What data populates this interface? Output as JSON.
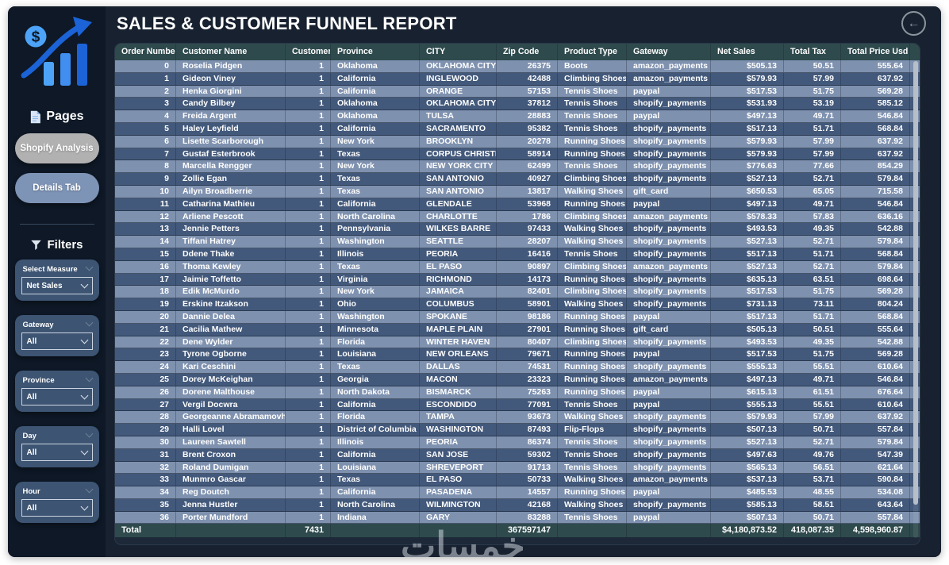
{
  "page": {
    "title": "SALES & CUSTOMER FUNNEL REPORT",
    "back_icon": "←",
    "watermark": "خمسات"
  },
  "sidebar": {
    "pages_title": "Pages",
    "pages": [
      {
        "label": "Shopify Analysis",
        "active": true
      },
      {
        "label": "Details Tab",
        "active": false
      }
    ],
    "filters_title": "Filters",
    "filters": [
      {
        "label": "Select Measure",
        "value": "Net Sales"
      },
      {
        "label": "Gateway",
        "value": "All"
      },
      {
        "label": "Province",
        "value": "All"
      },
      {
        "label": "Day",
        "value": "All"
      },
      {
        "label": "Hour",
        "value": "All"
      }
    ]
  },
  "colors": {
    "page_bg": "#ffffff",
    "dashboard_bg": "#17212f",
    "sidebar_bg": "#0e1826",
    "table_header_bg": "#2e4a4d",
    "row_light": "#7e91af",
    "row_dark": "#43597b",
    "active_page_btn": "#b2b1b2",
    "inactive_page_btn": "#7e94b6",
    "filter_card_bg": "#3d5472",
    "accent_blue_light": "#4da3f7",
    "accent_blue_dark": "#1b63d6"
  },
  "table": {
    "columns": [
      {
        "label": "Order Number",
        "align": "right"
      },
      {
        "label": "Customer Name",
        "align": "left"
      },
      {
        "label": "Customer Id",
        "align": "right"
      },
      {
        "label": "Province",
        "align": "left"
      },
      {
        "label": "CITY",
        "align": "left"
      },
      {
        "label": "Zip Code",
        "align": "right"
      },
      {
        "label": "Product Type",
        "align": "left"
      },
      {
        "label": "Gateway",
        "align": "left"
      },
      {
        "label": "Net Sales",
        "align": "right"
      },
      {
        "label": "Total Tax",
        "align": "right"
      },
      {
        "label": "Total Price Usd",
        "align": "right"
      }
    ],
    "rows": [
      [
        "0",
        "Roselia Pidgen",
        "1",
        "Oklahoma",
        "OKLAHOMA CITY",
        "26375",
        "Boots",
        "amazon_payments",
        "$505.13",
        "50.51",
        "555.64"
      ],
      [
        "1",
        "Gideon Viney",
        "1",
        "California",
        "INGLEWOOD",
        "42488",
        "Climbing Shoes",
        "amazon_payments",
        "$579.93",
        "57.99",
        "637.92"
      ],
      [
        "2",
        "Henka Giorgini",
        "1",
        "California",
        "ORANGE",
        "57153",
        "Tennis Shoes",
        "paypal",
        "$517.53",
        "51.75",
        "569.28"
      ],
      [
        "3",
        "Candy Bilbey",
        "1",
        "Oklahoma",
        "OKLAHOMA CITY",
        "37812",
        "Tennis Shoes",
        "shopify_payments",
        "$531.93",
        "53.19",
        "585.12"
      ],
      [
        "4",
        "Freida Argent",
        "1",
        "Oklahoma",
        "TULSA",
        "28883",
        "Tennis Shoes",
        "paypal",
        "$497.13",
        "49.71",
        "546.84"
      ],
      [
        "5",
        "Haley Leyfield",
        "1",
        "California",
        "SACRAMENTO",
        "95382",
        "Tennis Shoes",
        "shopify_payments",
        "$517.13",
        "51.71",
        "568.84"
      ],
      [
        "6",
        "Lisette Scarborough",
        "1",
        "New York",
        "BROOKLYN",
        "20278",
        "Running Shoes",
        "shopify_payments",
        "$579.93",
        "57.99",
        "637.92"
      ],
      [
        "7",
        "Gustaf Esterbrook",
        "1",
        "Texas",
        "CORPUS CHRISTI",
        "58914",
        "Running Shoes",
        "shopify_payments",
        "$579.93",
        "57.99",
        "637.92"
      ],
      [
        "8",
        "Marcella Rengger",
        "1",
        "New York",
        "NEW YORK CITY",
        "62499",
        "Tennis Shoes",
        "shopify_payments",
        "$776.63",
        "77.66",
        "854.29"
      ],
      [
        "9",
        "Zollie Egan",
        "1",
        "Texas",
        "SAN ANTONIO",
        "40927",
        "Climbing Shoes",
        "shopify_payments",
        "$527.13",
        "52.71",
        "579.84"
      ],
      [
        "10",
        "Ailyn Broadberrie",
        "1",
        "Texas",
        "SAN ANTONIO",
        "13817",
        "Walking Shoes",
        "gift_card",
        "$650.53",
        "65.05",
        "715.58"
      ],
      [
        "11",
        "Catharina Mathieu",
        "1",
        "California",
        "GLENDALE",
        "53968",
        "Running Shoes",
        "paypal",
        "$497.13",
        "49.71",
        "546.84"
      ],
      [
        "12",
        "Arliene Pescott",
        "1",
        "North Carolina",
        "CHARLOTTE",
        "1786",
        "Climbing Shoes",
        "amazon_payments",
        "$578.33",
        "57.83",
        "636.16"
      ],
      [
        "13",
        "Jennie Petters",
        "1",
        "Pennsylvania",
        "WILKES BARRE",
        "97433",
        "Walking Shoes",
        "shopify_payments",
        "$493.53",
        "49.35",
        "542.88"
      ],
      [
        "14",
        "Tiffani Hatrey",
        "1",
        "Washington",
        "SEATTLE",
        "28207",
        "Walking Shoes",
        "shopify_payments",
        "$527.13",
        "52.71",
        "579.84"
      ],
      [
        "15",
        "Ddene Thake",
        "1",
        "Illinois",
        "PEORIA",
        "16416",
        "Tennis Shoes",
        "shopify_payments",
        "$517.13",
        "51.71",
        "568.84"
      ],
      [
        "16",
        "Thoma Kewley",
        "1",
        "Texas",
        "EL PASO",
        "90897",
        "Climbing Shoes",
        "amazon_payments",
        "$527.13",
        "52.71",
        "579.84"
      ],
      [
        "17",
        "Jaimie Toffetto",
        "1",
        "Virginia",
        "RICHMOND",
        "14173",
        "Running Shoes",
        "shopify_payments",
        "$635.13",
        "63.51",
        "698.64"
      ],
      [
        "18",
        "Edik McMurdo",
        "1",
        "New York",
        "JAMAICA",
        "82401",
        "Climbing Shoes",
        "shopify_payments",
        "$517.53",
        "51.75",
        "569.28"
      ],
      [
        "19",
        "Erskine Itzakson",
        "1",
        "Ohio",
        "COLUMBUS",
        "58901",
        "Walking Shoes",
        "shopify_payments",
        "$731.13",
        "73.11",
        "804.24"
      ],
      [
        "20",
        "Dannie Delea",
        "1",
        "Washington",
        "SPOKANE",
        "98186",
        "Running Shoes",
        "paypal",
        "$517.13",
        "51.71",
        "568.84"
      ],
      [
        "21",
        "Cacilia Mathew",
        "1",
        "Minnesota",
        "MAPLE PLAIN",
        "27901",
        "Running Shoes",
        "gift_card",
        "$505.13",
        "50.51",
        "555.64"
      ],
      [
        "22",
        "Dene Wylder",
        "1",
        "Florida",
        "WINTER HAVEN",
        "80407",
        "Climbing Shoes",
        "shopify_payments",
        "$493.53",
        "49.35",
        "542.88"
      ],
      [
        "23",
        "Tyrone Ogborne",
        "1",
        "Louisiana",
        "NEW ORLEANS",
        "79671",
        "Running Shoes",
        "paypal",
        "$517.53",
        "51.75",
        "569.28"
      ],
      [
        "24",
        "Kari Ceschini",
        "1",
        "Texas",
        "DALLAS",
        "74531",
        "Running Shoes",
        "shopify_payments",
        "$555.13",
        "55.51",
        "610.64"
      ],
      [
        "25",
        "Dorey McKeighan",
        "1",
        "Georgia",
        "MACON",
        "23323",
        "Running Shoes",
        "amazon_payments",
        "$497.13",
        "49.71",
        "546.84"
      ],
      [
        "26",
        "Dorene Malthouse",
        "1",
        "North Dakota",
        "BISMARCK",
        "75263",
        "Running Shoes",
        "paypal",
        "$615.13",
        "61.51",
        "676.64"
      ],
      [
        "27",
        "Vergil Docwra",
        "1",
        "California",
        "ESCONDIDO",
        "77091",
        "Tennis Shoes",
        "paypal",
        "$555.13",
        "55.51",
        "610.64"
      ],
      [
        "28",
        "Georgeanne Abramamovh",
        "1",
        "Florida",
        "TAMPA",
        "93673",
        "Walking Shoes",
        "shopify_payments",
        "$579.93",
        "57.99",
        "637.92"
      ],
      [
        "29",
        "Halli Lovel",
        "1",
        "District of Columbia",
        "WASHINGTON",
        "87493",
        "Flip-Flops",
        "shopify_payments",
        "$507.13",
        "50.71",
        "557.84"
      ],
      [
        "30",
        "Laureen Sawtell",
        "1",
        "Illinois",
        "PEORIA",
        "86374",
        "Tennis Shoes",
        "shopify_payments",
        "$527.13",
        "52.71",
        "579.84"
      ],
      [
        "31",
        "Brent Croxon",
        "1",
        "California",
        "SAN JOSE",
        "59302",
        "Tennis Shoes",
        "shopify_payments",
        "$497.63",
        "49.76",
        "547.39"
      ],
      [
        "32",
        "Roland Dumigan",
        "1",
        "Louisiana",
        "SHREVEPORT",
        "91713",
        "Tennis Shoes",
        "shopify_payments",
        "$565.13",
        "56.51",
        "621.64"
      ],
      [
        "33",
        "Munmro Gascar",
        "1",
        "Texas",
        "EL PASO",
        "50733",
        "Walking Shoes",
        "amazon_payments",
        "$537.13",
        "53.71",
        "590.84"
      ],
      [
        "34",
        "Reg Doutch",
        "1",
        "California",
        "PASADENA",
        "14557",
        "Running Shoes",
        "paypal",
        "$485.53",
        "48.55",
        "534.08"
      ],
      [
        "35",
        "Jenna Hustler",
        "1",
        "North Carolina",
        "WILMINGTON",
        "42168",
        "Walking Shoes",
        "shopify_payments",
        "$585.13",
        "58.51",
        "643.64"
      ],
      [
        "36",
        "Porter Mundford",
        "1",
        "Indiana",
        "GARY",
        "83288",
        "Tennis Shoes",
        "paypal",
        "$507.13",
        "50.71",
        "557.84"
      ]
    ],
    "total": {
      "label": "Total",
      "customer_id": "7431",
      "zip_code": "367597147",
      "net_sales": "$4,180,873.52",
      "total_tax": "418,087.35",
      "total_price": "4,598,960.87"
    }
  }
}
